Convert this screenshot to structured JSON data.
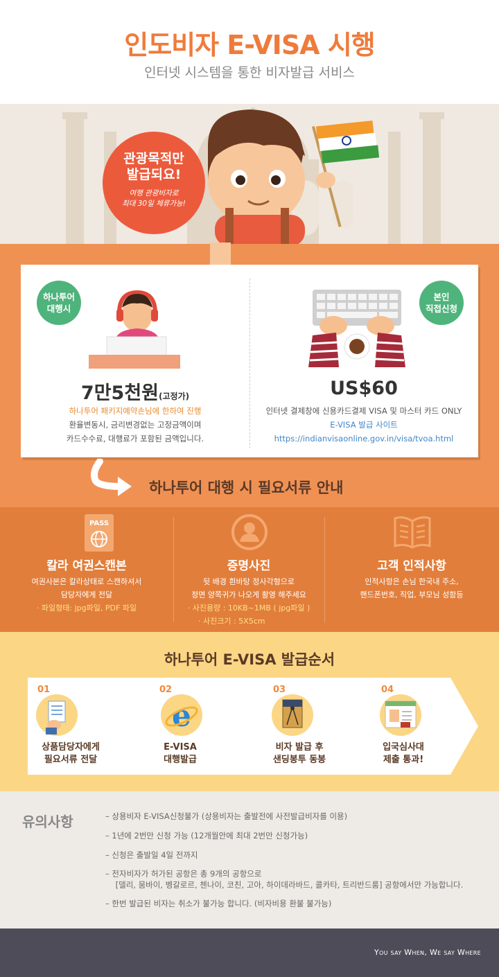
{
  "header": {
    "title": "인도비자 E-VISA 시행",
    "subtitle": "인터넷 시스템을 통한 비자발급 서비스"
  },
  "hero": {
    "bubble_line1": "관광목적만",
    "bubble_line2": "발급되요!",
    "bubble_sub1": "여행 관광비자로",
    "bubble_sub2": "최대 30일 체류가능!"
  },
  "agency": {
    "badge_line1": "하나투어",
    "badge_line2": "대행시",
    "price": "7만5천원",
    "price_note": "(고정가)",
    "line1": "하나투어 패키지예약손님에 한하여 진행",
    "line2": "환율변동시, 금리변경없는 고정금액이며",
    "line3": "카드수수료, 대행료가 포함된 금액입니다."
  },
  "self": {
    "badge_line1": "본인",
    "badge_line2": "직접신청",
    "price": "US$60",
    "line1": "인터넷 결제창에 신용카드결제 VISA 및 마스터 카드 ONLY",
    "line2": "E-VISA 발급 사이트",
    "line3": "https://indianvisaonline.gov.in/visa/tvoa.html"
  },
  "guide_title": "하나투어 대행 시 필요서류 안내",
  "documents": [
    {
      "icon_label": "PASS",
      "title": "칼라 여권스캔본",
      "desc1": "여권사본은 칼라상태로 스캔하셔서",
      "desc2": "담당자에게 전달",
      "note1": "· 파일형태: jpg파일, PDF 파일",
      "note2": ""
    },
    {
      "title": "증명사진",
      "desc1": "뒷 배경 흰바탕 정사각형으로",
      "desc2": "정면 양쪽귀가 나오게 촬영 해주세요",
      "note1": "· 사진용량 : 10KB~1MB ( jpg파일 )",
      "note2": "· 사진크기 : 5X5cm"
    },
    {
      "title": "고객 인적사항",
      "desc1": "인적사항은 손님 한국내 주소,",
      "desc2": "핸드폰번호, 직업, 부모님 성함등",
      "note1": "",
      "note2": ""
    }
  ],
  "process": {
    "title": "하나투어 E-VISA 발급순서",
    "steps": [
      {
        "num": "01",
        "line1": "상품담당자에게",
        "line2": "필요서류 전달"
      },
      {
        "num": "02",
        "line1": "E-VISA",
        "line2": "대행발급"
      },
      {
        "num": "03",
        "line1": "비자 발급 후",
        "line2": "샌딩봉투 동봉"
      },
      {
        "num": "04",
        "line1": "입국심사대",
        "line2": "제출 통과!"
      }
    ]
  },
  "notes": {
    "title": "유의사항",
    "items": [
      "– 상용비자 E-VISA신청불가 (상용비자는 출발전에 사전발급비자를 이용)",
      "– 1년에 2번만 신청 가능 (12개월안에 최대 2번만 신청가능)",
      "–  신청은 출발일 4일 전까지",
      "–  전자비자가 허가된 공항은 총 9개의 공항으로",
      "    [델리, 뭄바이, 벵갈로르, 첸나이, 코친, 고아, 하이데라바드, 콜카타, 트리반드룸] 공항에서만 가능합니다.",
      "–  한번 발급된 비자는 취소가 불가능 합니다. (비자비용 환불 불가능)"
    ]
  },
  "footer": {
    "slogan": "You say When, We say Where"
  },
  "colors": {
    "accent_orange": "#ef7b3b",
    "badge_green": "#4fb37c",
    "bubble_red": "#ec5a3c",
    "process_yellow": "#fbd685",
    "footer_dark": "#4d4c58"
  }
}
